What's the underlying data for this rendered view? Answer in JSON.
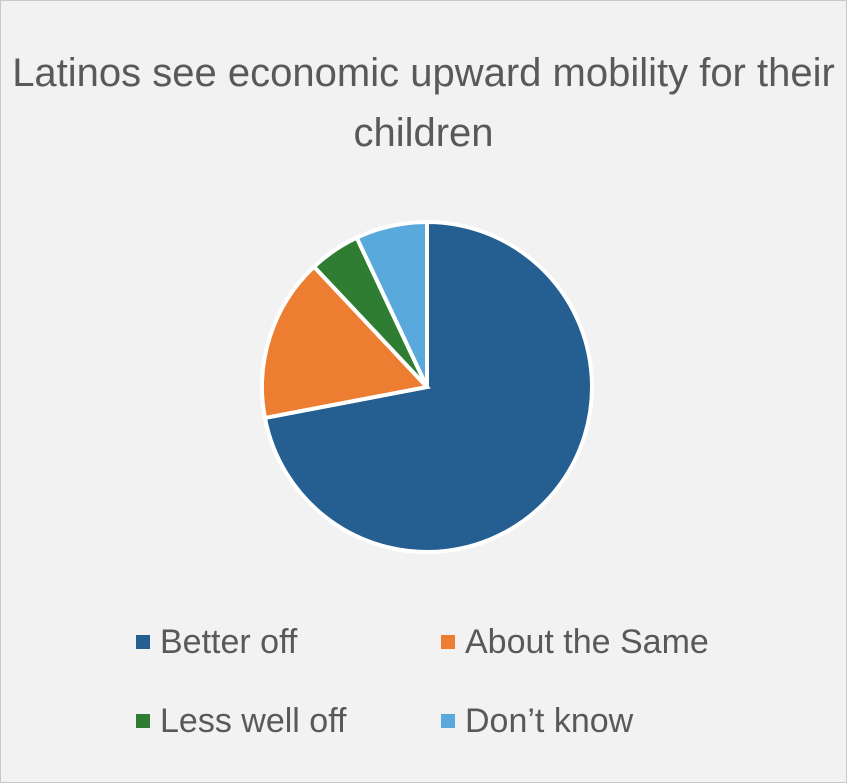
{
  "chart_data": {
    "type": "pie",
    "title": "Latinos see economic upward mobility for their children",
    "categories": [
      "Better off",
      "About the Same",
      "Less well off",
      "Don’t know"
    ],
    "values": [
      72,
      16,
      5,
      7
    ],
    "colors": [
      "#255e91",
      "#ed7d31",
      "#2f7d32",
      "#5aa9dc"
    ],
    "legend": {
      "position": "bottom",
      "items": [
        {
          "label": "Better off",
          "color": "#255e91"
        },
        {
          "label": "About the Same",
          "color": "#ed7d31"
        },
        {
          "label": "Less well off",
          "color": "#2f7d32"
        },
        {
          "label": "Don’t know",
          "color": "#5aa9dc"
        }
      ]
    }
  }
}
